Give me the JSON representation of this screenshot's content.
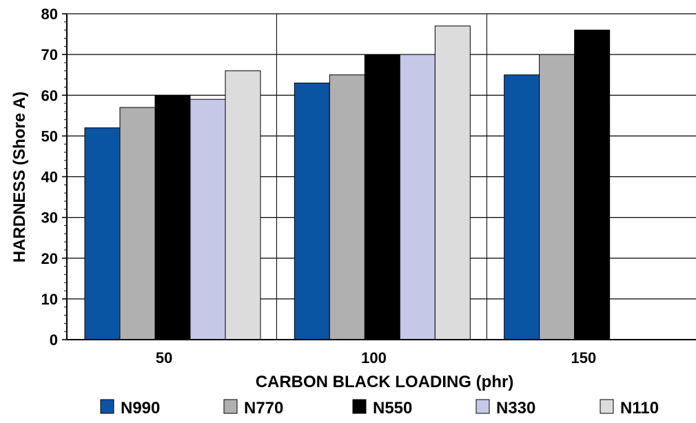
{
  "chart_data": {
    "type": "bar",
    "title": "",
    "xlabel": "CARBON BLACK LOADING (phr)",
    "ylabel": "HARDNESS (Shore A)",
    "categories": [
      "50",
      "100",
      "150"
    ],
    "ylim": [
      0,
      80
    ],
    "y_ticks": [
      0,
      10,
      20,
      30,
      40,
      50,
      60,
      70,
      80
    ],
    "grid": true,
    "legend_position": "bottom",
    "series": [
      {
        "name": "N990",
        "color": "#0a54a4",
        "values": [
          52,
          63,
          65
        ]
      },
      {
        "name": "N770",
        "color": "#b0b0b0",
        "values": [
          57,
          65,
          70
        ]
      },
      {
        "name": "N550",
        "color": "#000000",
        "values": [
          60,
          70,
          76
        ]
      },
      {
        "name": "N330",
        "color": "#c5c8e6",
        "values": [
          59,
          70,
          null
        ]
      },
      {
        "name": "N110",
        "color": "#dcdcdc",
        "values": [
          66,
          77,
          null
        ]
      }
    ]
  }
}
